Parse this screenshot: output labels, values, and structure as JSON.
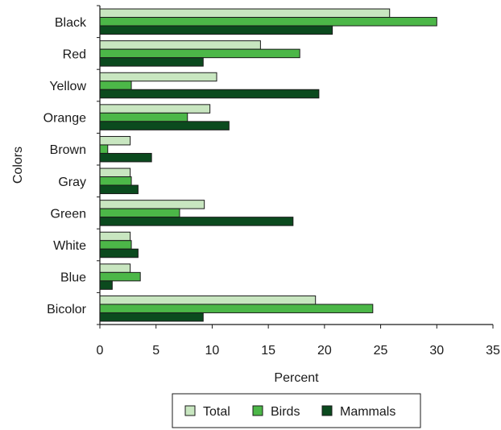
{
  "chart_data": {
    "type": "bar",
    "orientation": "horizontal",
    "title": "",
    "xlabel": "Percent",
    "ylabel": "Colors",
    "xlim": [
      0,
      35
    ],
    "x_ticks": [
      0,
      5,
      10,
      15,
      20,
      25,
      30,
      35
    ],
    "grid": false,
    "legend_position": "bottom",
    "categories": [
      "Black",
      "Red",
      "Yellow",
      "Orange",
      "Brown",
      "Gray",
      "Green",
      "White",
      "Blue",
      "Bicolor"
    ],
    "series": [
      {
        "name": "Total",
        "color": "#c8e6c0",
        "values": [
          25.8,
          14.3,
          10.4,
          9.8,
          2.7,
          2.7,
          9.3,
          2.7,
          2.7,
          19.2
        ]
      },
      {
        "name": "Birds",
        "color": "#4cb748",
        "values": [
          30.0,
          17.8,
          2.8,
          7.8,
          0.7,
          2.8,
          7.1,
          2.8,
          3.6,
          24.3
        ]
      },
      {
        "name": "Mammals",
        "color": "#0b4a1e",
        "values": [
          20.7,
          9.2,
          19.5,
          11.5,
          4.6,
          3.4,
          17.2,
          3.4,
          1.1,
          9.2
        ]
      }
    ]
  }
}
